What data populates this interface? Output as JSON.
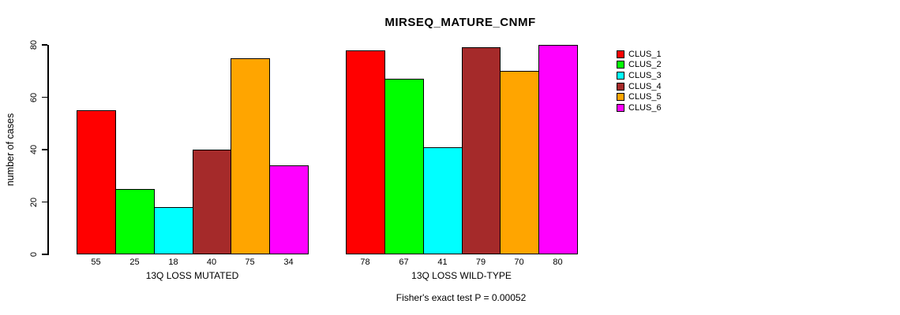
{
  "chart_data": {
    "type": "bar",
    "title": "MIRSEQ_MATURE_CNMF",
    "ylabel": "number of cases",
    "xlabel": "",
    "ylim": [
      0,
      80
    ],
    "yticks": [
      0,
      20,
      40,
      60,
      80
    ],
    "grid": false,
    "legend_position": "top-right-outside",
    "categories": [
      "13Q LOSS MUTATED",
      "13Q LOSS WILD-TYPE"
    ],
    "series": [
      {
        "name": "CLUS_1",
        "color": "#FF0000",
        "values": [
          55,
          78
        ]
      },
      {
        "name": "CLUS_2",
        "color": "#00FF00",
        "values": [
          25,
          67
        ]
      },
      {
        "name": "CLUS_3",
        "color": "#00FFFF",
        "values": [
          18,
          41
        ]
      },
      {
        "name": "CLUS_4",
        "color": "#A52A2A",
        "values": [
          40,
          79
        ]
      },
      {
        "name": "CLUS_5",
        "color": "#FFA500",
        "values": [
          75,
          70
        ]
      },
      {
        "name": "CLUS_6",
        "color": "#FF00FF",
        "values": [
          34,
          80
        ]
      }
    ],
    "bar_value_labels_shown": true,
    "annotation": "Fisher's exact test P = 0.00052"
  }
}
